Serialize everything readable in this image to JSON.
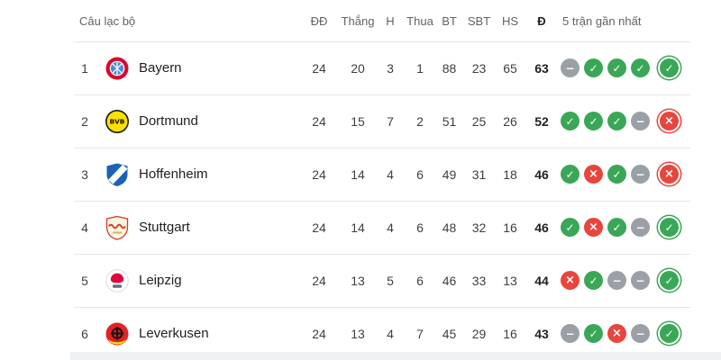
{
  "colors": {
    "zone_blue": "#4285F4",
    "zone_orange": "#EE7624",
    "zone_green": "#34A853",
    "win": "#3AA757",
    "draw": "#9AA0A6",
    "loss": "#E8453C",
    "divider": "#E4E6E8"
  },
  "header": {
    "club": "Câu lạc bộ",
    "played": "ĐĐ",
    "wins": "Thắng",
    "draws": "H",
    "losses": "Thua",
    "goals_for": "BT",
    "goals_against": "SBT",
    "goal_diff": "HS",
    "points": "Đ",
    "last5": "5 trận gần nhất"
  },
  "rows": [
    {
      "rank": "1",
      "team": "Bayern",
      "logo": "bayern",
      "zone": "blue",
      "p": "24",
      "w": "20",
      "d": "3",
      "l": "1",
      "gf": "88",
      "ga": "23",
      "gd": "65",
      "pts": "63",
      "last5": [
        "draw",
        "win",
        "win",
        "win",
        "win"
      ]
    },
    {
      "rank": "2",
      "team": "Dortmund",
      "logo": "dortmund",
      "zone": "blue",
      "p": "24",
      "w": "15",
      "d": "7",
      "l": "2",
      "gf": "51",
      "ga": "25",
      "gd": "26",
      "pts": "52",
      "last5": [
        "win",
        "win",
        "win",
        "draw",
        "loss"
      ]
    },
    {
      "rank": "3",
      "team": "Hoffenheim",
      "logo": "hoffenheim",
      "zone": "blue",
      "p": "24",
      "w": "14",
      "d": "4",
      "l": "6",
      "gf": "49",
      "ga": "31",
      "gd": "18",
      "pts": "46",
      "last5": [
        "win",
        "loss",
        "win",
        "draw",
        "loss"
      ]
    },
    {
      "rank": "4",
      "team": "Stuttgart",
      "logo": "stuttgart",
      "zone": "blue",
      "p": "24",
      "w": "14",
      "d": "4",
      "l": "6",
      "gf": "48",
      "ga": "32",
      "gd": "16",
      "pts": "46",
      "last5": [
        "win",
        "loss",
        "win",
        "draw",
        "win"
      ]
    },
    {
      "rank": "5",
      "team": "Leipzig",
      "logo": "leipzig",
      "zone": "orange",
      "p": "24",
      "w": "13",
      "d": "5",
      "l": "6",
      "gf": "46",
      "ga": "33",
      "gd": "13",
      "pts": "44",
      "last5": [
        "loss",
        "win",
        "draw",
        "draw",
        "win"
      ]
    },
    {
      "rank": "6",
      "team": "Leverkusen",
      "logo": "leverkusen",
      "zone": "green",
      "p": "24",
      "w": "13",
      "d": "4",
      "l": "7",
      "gf": "45",
      "ga": "29",
      "gd": "16",
      "pts": "43",
      "last5": [
        "draw",
        "win",
        "loss",
        "draw",
        "win"
      ]
    }
  ]
}
